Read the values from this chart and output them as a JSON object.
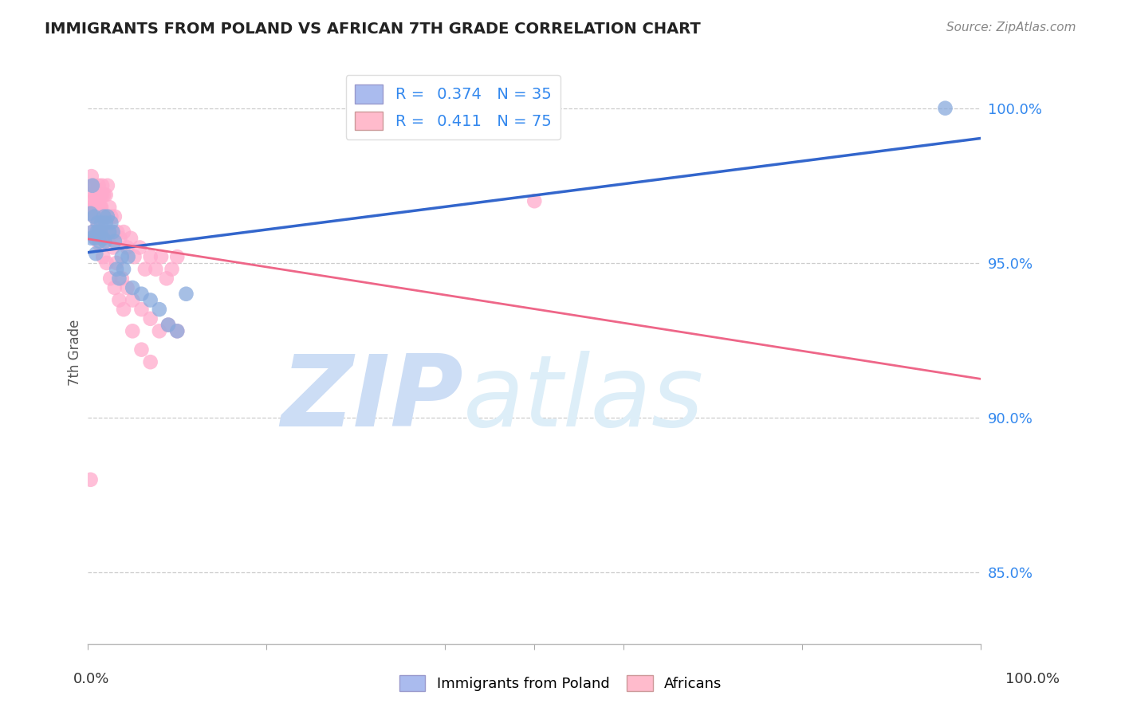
{
  "title": "IMMIGRANTS FROM POLAND VS AFRICAN 7TH GRADE CORRELATION CHART",
  "source": "Source: ZipAtlas.com",
  "ylabel": "7th Grade",
  "xlim": [
    0.0,
    1.0
  ],
  "ylim": [
    0.827,
    1.015
  ],
  "y_tick_values": [
    1.0,
    0.95,
    0.9,
    0.85
  ],
  "y_tick_labels": [
    "100.0%",
    "95.0%",
    "90.0%",
    "85.0%"
  ],
  "poland_color": "#88aadd",
  "african_color": "#ffaacc",
  "poland_line_color": "#3366cc",
  "african_line_color": "#ee6688",
  "background_color": "#ffffff",
  "watermark_zip": "ZIP",
  "watermark_atlas": "atlas",
  "watermark_color": "#ccddf5",
  "legend_box_poland": "#aabbee",
  "legend_box_african": "#ffbbcc",
  "poland_x": [
    0.003,
    0.005,
    0.005,
    0.007,
    0.008,
    0.009,
    0.01,
    0.011,
    0.012,
    0.013,
    0.014,
    0.015,
    0.017,
    0.018,
    0.019,
    0.02,
    0.022,
    0.024,
    0.026,
    0.028,
    0.03,
    0.032,
    0.035,
    0.038,
    0.04,
    0.045,
    0.05,
    0.06,
    0.07,
    0.08,
    0.09,
    0.1,
    0.11,
    0.96,
    0.004
  ],
  "poland_y": [
    0.966,
    0.975,
    0.96,
    0.965,
    0.958,
    0.953,
    0.96,
    0.963,
    0.96,
    0.957,
    0.96,
    0.963,
    0.958,
    0.965,
    0.957,
    0.963,
    0.965,
    0.96,
    0.963,
    0.96,
    0.957,
    0.948,
    0.945,
    0.952,
    0.948,
    0.952,
    0.942,
    0.94,
    0.938,
    0.935,
    0.93,
    0.928,
    0.94,
    1.0,
    0.958
  ],
  "african_x": [
    0.003,
    0.004,
    0.005,
    0.006,
    0.007,
    0.008,
    0.009,
    0.01,
    0.011,
    0.012,
    0.013,
    0.014,
    0.015,
    0.016,
    0.017,
    0.018,
    0.019,
    0.02,
    0.022,
    0.024,
    0.026,
    0.028,
    0.03,
    0.033,
    0.036,
    0.04,
    0.044,
    0.048,
    0.052,
    0.058,
    0.064,
    0.07,
    0.076,
    0.082,
    0.088,
    0.094,
    0.1,
    0.004,
    0.006,
    0.008,
    0.01,
    0.012,
    0.014,
    0.016,
    0.018,
    0.02,
    0.024,
    0.028,
    0.032,
    0.038,
    0.044,
    0.05,
    0.06,
    0.07,
    0.08,
    0.09,
    0.1,
    0.005,
    0.007,
    0.009,
    0.011,
    0.013,
    0.015,
    0.017,
    0.019,
    0.021,
    0.025,
    0.03,
    0.035,
    0.04,
    0.05,
    0.06,
    0.07,
    0.5,
    0.003
  ],
  "african_y": [
    0.972,
    0.978,
    0.97,
    0.975,
    0.968,
    0.972,
    0.965,
    0.972,
    0.968,
    0.975,
    0.968,
    0.972,
    0.968,
    0.975,
    0.965,
    0.972,
    0.965,
    0.972,
    0.975,
    0.968,
    0.965,
    0.96,
    0.965,
    0.96,
    0.958,
    0.96,
    0.955,
    0.958,
    0.952,
    0.955,
    0.948,
    0.952,
    0.948,
    0.952,
    0.945,
    0.948,
    0.952,
    0.968,
    0.975,
    0.968,
    0.972,
    0.965,
    0.968,
    0.972,
    0.96,
    0.965,
    0.958,
    0.955,
    0.95,
    0.945,
    0.942,
    0.938,
    0.935,
    0.932,
    0.928,
    0.93,
    0.928,
    0.96,
    0.965,
    0.958,
    0.962,
    0.956,
    0.96,
    0.952,
    0.958,
    0.95,
    0.945,
    0.942,
    0.938,
    0.935,
    0.928,
    0.922,
    0.918,
    0.97,
    0.88
  ]
}
